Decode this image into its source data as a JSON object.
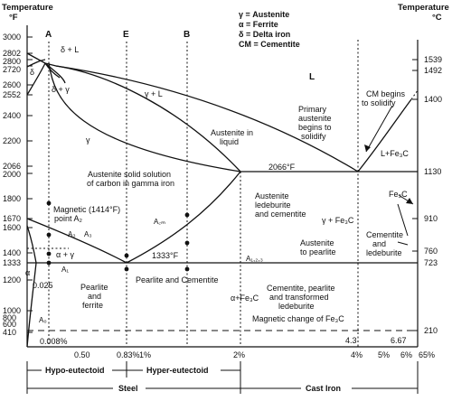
{
  "axes": {
    "left_title_line1": "Temperature",
    "left_title_line2": "°F",
    "right_title_line1": "Temperature",
    "right_title_line2": "°C",
    "left_ticks": [
      "3000",
      "2802",
      "2800",
      "2720",
      "2600",
      "2552",
      "2400",
      "2200",
      "2066",
      "2000",
      "1800",
      "1670",
      "1600",
      "1400",
      "1333",
      "1200",
      "1000",
      "800",
      "600",
      "410"
    ],
    "right_ticks": [
      "1539",
      "1492",
      "1400",
      "1130",
      "910",
      "760",
      "723",
      "210"
    ],
    "bottom_ticks": [
      "0.008%",
      "0.50",
      "0.83%",
      "1%",
      "2%",
      "4%",
      "5%",
      "6%",
      "6.67",
      "65%",
      "4.3",
      "0.025"
    ]
  },
  "legend": {
    "gamma": "γ = Austenite",
    "alpha": "α = Ferrite",
    "delta": "δ = Delta iron",
    "cm": "CM = Cementite"
  },
  "lines": {
    "A": "A",
    "E": "E",
    "B": "B"
  },
  "regions": {
    "delta_L": "δ + L",
    "delta": "δ",
    "delta_gamma": "δ + γ",
    "L": "L",
    "gamma_L": "γ + L",
    "gamma": "γ",
    "austenite_liquid_1": "Austenite in",
    "austenite_liquid_2": "liquid",
    "primary_1": "Primary",
    "primary_2": "austenite",
    "primary_3": "begins to",
    "primary_4": "solidify",
    "cm_begins_1": "CM begins",
    "cm_begins_2": "to solidify",
    "l_fe3c": "L+Fe₃C",
    "eutectic_temp": "2066°F",
    "solid_solution_1": "Austenite solid solution",
    "solid_solution_2": "of carbon in gamma iron",
    "magnetic_1": "Magnetic (1414°F)",
    "magnetic_2": "point A₂",
    "a3": "A₃",
    "a_gamma": "A₃",
    "alpha_gamma": "α + γ",
    "a1": "A₁",
    "alpha": "α",
    "acm": "A꜀ₘ",
    "eutectoid_temp": "1333°F",
    "a123": "A₁,₂,₃",
    "ledeburite_1": "Austenite",
    "ledeburite_2": "ledeburite",
    "ledeburite_3": "and cementite",
    "gamma_fe3c": "γ + Fe₃C",
    "fe3c": "Fe₃C",
    "to_pearlite_1": "Austenite",
    "to_pearlite_2": "to pearlite",
    "cem_led_1": "Cementite",
    "cem_led_2": "and",
    "cem_led_3": "ledeburite",
    "pearlite_ferrite_1": "Pearlite",
    "pearlite_ferrite_2": "and",
    "pearlite_ferrite_3": "ferrite",
    "pearlite_cementite": "Pearlite and Cementite",
    "alpha_fe3c": "α+Fe₃C",
    "transformed_1": "Cementite, pearlite",
    "transformed_2": "and transformed",
    "transformed_3": "ledeburite",
    "a0": "A₀",
    "magnetic_change": "Magnetic change of Fe₃C"
  },
  "bottom_labels": {
    "hypo": "Hypo-eutectoid",
    "hyper": "Hyper-eutectoid",
    "steel": "Steel",
    "cast_iron": "Cast Iron"
  }
}
